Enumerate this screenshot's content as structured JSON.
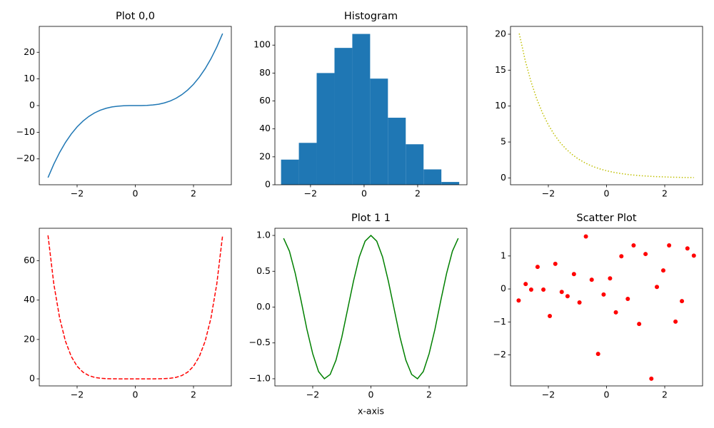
{
  "chart_data": [
    {
      "type": "line",
      "title": "Plot 0,0",
      "color": "#1f77b4",
      "linestyle": "solid",
      "x": [
        -3,
        -2.8,
        -2.6,
        -2.4,
        -2.2,
        -2,
        -1.8,
        -1.6,
        -1.4,
        -1.2,
        -1,
        -0.8,
        -0.6,
        -0.4,
        -0.2,
        0,
        0.2,
        0.4,
        0.6,
        0.8,
        1,
        1.2,
        1.4,
        1.6,
        1.8,
        2,
        2.2,
        2.4,
        2.6,
        2.8,
        3
      ],
      "values": [
        -27,
        -21.95,
        -17.58,
        -13.82,
        -10.65,
        -8,
        -5.83,
        -4.1,
        -2.74,
        -1.73,
        -1,
        -0.51,
        -0.22,
        -0.06,
        -0.01,
        0,
        0.01,
        0.06,
        0.22,
        0.51,
        1,
        1.73,
        2.74,
        4.1,
        5.83,
        8,
        10.65,
        13.82,
        17.58,
        21.95,
        27
      ],
      "xlim": [
        -3.3,
        3.3
      ],
      "xticks": [
        {
          "value": -2,
          "label": "−2"
        },
        0,
        2
      ],
      "ylim": [
        -29.7,
        29.7
      ],
      "yticks": [
        {
          "value": -20,
          "label": "−20"
        },
        {
          "value": -10,
          "label": "−10"
        },
        0,
        10,
        20
      ]
    },
    {
      "type": "histogram",
      "title": "Histogram",
      "color": "#1f77b4",
      "bins": [
        -3.1,
        -2.435,
        -1.77,
        -1.105,
        -0.44,
        0.225,
        0.89,
        1.555,
        2.22,
        2.885,
        3.55
      ],
      "values": [
        18,
        30,
        80,
        98,
        108,
        76,
        48,
        29,
        11,
        2
      ],
      "xlim": [
        -3.33,
        3.84
      ],
      "xticks": [
        {
          "value": -2,
          "label": "−2"
        },
        0,
        2
      ],
      "ylim": [
        0,
        113.4
      ],
      "yticks": [
        0,
        20,
        40,
        60,
        80,
        100
      ]
    },
    {
      "type": "line",
      "color": "#bfbf00",
      "linestyle": "dotted",
      "x": [
        -3,
        -2.8,
        -2.6,
        -2.4,
        -2.2,
        -2,
        -1.8,
        -1.6,
        -1.4,
        -1.2,
        -1,
        -0.8,
        -0.6,
        -0.4,
        -0.2,
        0,
        0.2,
        0.4,
        0.6,
        0.8,
        1,
        1.2,
        1.4,
        1.6,
        1.8,
        2,
        2.2,
        2.4,
        2.6,
        2.8,
        3
      ],
      "values": [
        20.09,
        16.44,
        13.46,
        11.02,
        9.03,
        7.39,
        6.05,
        4.95,
        4.06,
        3.32,
        2.72,
        2.23,
        1.82,
        1.49,
        1.22,
        1,
        0.82,
        0.67,
        0.55,
        0.45,
        0.37,
        0.3,
        0.25,
        0.2,
        0.17,
        0.14,
        0.11,
        0.09,
        0.07,
        0.06,
        0.05
      ],
      "xlim": [
        -3.3,
        3.3
      ],
      "xticks": [
        {
          "value": -2,
          "label": "−2"
        },
        0,
        2
      ],
      "ylim": [
        -0.95,
        21.09
      ],
      "yticks": [
        0,
        5,
        10,
        15,
        20
      ]
    },
    {
      "type": "line",
      "color": "#ff0000",
      "linestyle": "dashed",
      "x": [
        -3,
        -2.8,
        -2.6,
        -2.4,
        -2.2,
        -2,
        -1.8,
        -1.6,
        -1.4,
        -1.2,
        -1,
        -0.8,
        -0.6,
        -0.4,
        -0.2,
        0,
        0.2,
        0.4,
        0.6,
        0.8,
        1,
        1.2,
        1.4,
        1.6,
        1.8,
        2,
        2.2,
        2.4,
        2.6,
        2.8,
        3
      ],
      "values": [
        72.9,
        48.19,
        30.89,
        19.11,
        11.34,
        6.4,
        3.4,
        1.68,
        0.75,
        0.3,
        0.1,
        0.03,
        0,
        0,
        0,
        0,
        0,
        0,
        0,
        0.03,
        0.1,
        0.3,
        0.75,
        1.68,
        3.4,
        6.4,
        11.34,
        19.11,
        30.89,
        48.19,
        72.9
      ],
      "xlim": [
        -3.3,
        3.3
      ],
      "xticks": [
        {
          "value": -2,
          "label": "−2"
        },
        0,
        2
      ],
      "ylim": [
        -3.6,
        76.5
      ],
      "yticks": [
        0,
        20,
        40,
        60
      ]
    },
    {
      "type": "line",
      "title": "Plot 1 1",
      "xlabel": "x-axis",
      "color": "#008000",
      "linestyle": "solid",
      "x": [
        -3,
        -2.8,
        -2.6,
        -2.4,
        -2.2,
        -2,
        -1.8,
        -1.6,
        -1.4,
        -1.2,
        -1,
        -0.8,
        -0.6,
        -0.4,
        -0.2,
        0,
        0.2,
        0.4,
        0.6,
        0.8,
        1,
        1.2,
        1.4,
        1.6,
        1.8,
        2,
        2.2,
        2.4,
        2.6,
        2.8,
        3
      ],
      "values": [
        0.96,
        0.78,
        0.47,
        0.09,
        -0.31,
        -0.65,
        -0.9,
        -1,
        -0.94,
        -0.74,
        -0.42,
        -0.03,
        0.36,
        0.7,
        0.92,
        1,
        0.92,
        0.7,
        0.36,
        -0.03,
        -0.42,
        -0.74,
        -0.94,
        -1,
        -0.9,
        -0.65,
        -0.31,
        0.09,
        0.47,
        0.78,
        0.96
      ],
      "xlim": [
        -3.3,
        3.3
      ],
      "xticks": [
        {
          "value": -2,
          "label": "−2"
        },
        0,
        2
      ],
      "ylim": [
        -1.1,
        1.1
      ],
      "yticks": [
        {
          "value": -1,
          "label": "−1.0"
        },
        {
          "value": -0.5,
          "label": "−0.5"
        },
        {
          "value": 0,
          "label": "0.0"
        },
        {
          "value": 0.5,
          "label": "0.5"
        },
        {
          "value": 1,
          "label": "1.0"
        }
      ]
    },
    {
      "type": "scatter",
      "title": "Scatter Plot",
      "color": "#ff0000",
      "x": [
        -3.02,
        -2.78,
        -2.59,
        -2.37,
        -2.17,
        -1.95,
        -1.76,
        -1.54,
        -1.34,
        -1.12,
        -0.93,
        -0.71,
        -0.51,
        -0.29,
        -0.1,
        0.12,
        0.32,
        0.51,
        0.73,
        0.93,
        1.12,
        1.34,
        1.54,
        1.73,
        1.95,
        2.15,
        2.37,
        2.59,
        2.78,
        3
      ],
      "values": [
        -0.35,
        0.15,
        -0.02,
        0.67,
        -0.02,
        -0.82,
        0.76,
        -0.09,
        -0.22,
        0.45,
        -0.41,
        1.59,
        0.28,
        -1.97,
        -0.17,
        0.32,
        -0.71,
        0.99,
        -0.3,
        1.32,
        -1.06,
        1.06,
        -2.72,
        0.06,
        0.56,
        1.32,
        -0.99,
        -0.37,
        1.23,
        1.01
      ],
      "xlim": [
        -3.3,
        3.3
      ],
      "xticks": [
        {
          "value": -2,
          "label": "−2"
        },
        0,
        2
      ],
      "ylim": [
        -2.94,
        1.84
      ],
      "yticks": [
        {
          "value": -2,
          "label": "−2"
        },
        {
          "value": -1,
          "label": "−1"
        },
        0,
        1
      ]
    }
  ]
}
